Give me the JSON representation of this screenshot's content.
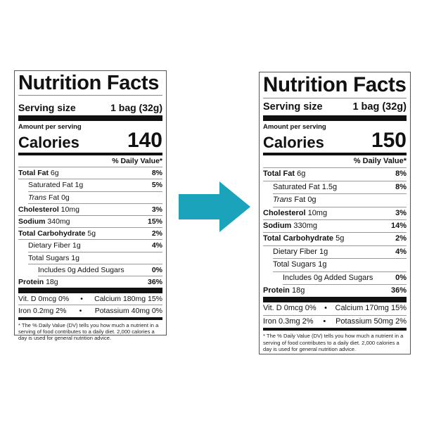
{
  "colors": {
    "arrow": "#1aa3ba"
  },
  "arrow_icon": "right-arrow-icon",
  "labels": [
    {
      "title": "Nutrition Facts",
      "serving_label": "Serving size",
      "serving_value": "1 bag (32g)",
      "amount_per_serving": "Amount per serving",
      "calories_label": "Calories",
      "calories": "140",
      "dv_header": "% Daily Value*",
      "rows": [
        {
          "bold": "Total Fat",
          "amt": " 6g",
          "pct": "8%",
          "indent": 0
        },
        {
          "bold": "",
          "amt": "Saturated Fat 1g",
          "pct": "5%",
          "indent": 1
        },
        {
          "italic": "Trans",
          "amt": " Fat 0g",
          "pct": "",
          "indent": 1
        },
        {
          "bold": "Cholesterol",
          "amt": " 10mg",
          "pct": "3%",
          "indent": 0
        },
        {
          "bold": "Sodium",
          "amt": " 340mg",
          "pct": "15%",
          "indent": 0
        },
        {
          "bold": "Total Carbohydrate",
          "amt": " 5g",
          "pct": "2%",
          "indent": 0
        },
        {
          "bold": "",
          "amt": "Dietary Fiber 1g",
          "pct": "4%",
          "indent": 1
        },
        {
          "bold": "",
          "amt": "Total Sugars 1g",
          "pct": "",
          "indent": 1
        },
        {
          "bold": "",
          "amt": "Includes 0g Added Sugars",
          "pct": "0%",
          "indent": 2
        },
        {
          "bold": "Protein",
          "amt": " 18g",
          "pct": "36%",
          "indent": 0
        }
      ],
      "minerals": [
        [
          "Vit. D 0mcg 0%",
          "•",
          "Calcium 180mg 15%"
        ],
        [
          "Iron 0.2mg 2%",
          "•",
          "Potassium 40mg 0%"
        ]
      ],
      "footnote": "* The % Daily Value (DV) tells you how much a nutrient in a serving of food contributes to a daily diet. 2,000 calories a day is used for general nutrition advice."
    },
    {
      "title": "Nutrition Facts",
      "serving_label": "Serving size",
      "serving_value": "1 bag (32g)",
      "amount_per_serving": "Amount per serving",
      "calories_label": "Calories",
      "calories": "150",
      "dv_header": "% Daily Value*",
      "rows": [
        {
          "bold": "Total Fat",
          "amt": " 6g",
          "pct": "8%",
          "indent": 0
        },
        {
          "bold": "",
          "amt": "Saturated Fat 1.5g",
          "pct": "8%",
          "indent": 1
        },
        {
          "italic": "Trans",
          "amt": " Fat 0g",
          "pct": "",
          "indent": 1
        },
        {
          "bold": "Cholesterol",
          "amt": " 10mg",
          "pct": "3%",
          "indent": 0
        },
        {
          "bold": "Sodium",
          "amt": " 330mg",
          "pct": "14%",
          "indent": 0
        },
        {
          "bold": "Total Carbohydrate",
          "amt": " 5g",
          "pct": "2%",
          "indent": 0
        },
        {
          "bold": "",
          "amt": "Dietary Fiber 1g",
          "pct": "4%",
          "indent": 1
        },
        {
          "bold": "",
          "amt": "Total Sugars 1g",
          "pct": "",
          "indent": 1
        },
        {
          "bold": "",
          "amt": "Includes 0g Added Sugars",
          "pct": "0%",
          "indent": 2
        },
        {
          "bold": "Protein",
          "amt": " 18g",
          "pct": "36%",
          "indent": 0
        }
      ],
      "minerals": [
        [
          "Vit. D 0mcg 0%",
          "•",
          "Calcium 170mg 15%"
        ],
        [
          "Iron 0.3mg 2%",
          "•",
          "Potassium 50mg 2%"
        ]
      ],
      "footnote": "* The % Daily Value (DV) tells you how much a nutrient in a serving of food contributes to a daily diet. 2,000 calories a day is used for general nutrition advice."
    }
  ]
}
